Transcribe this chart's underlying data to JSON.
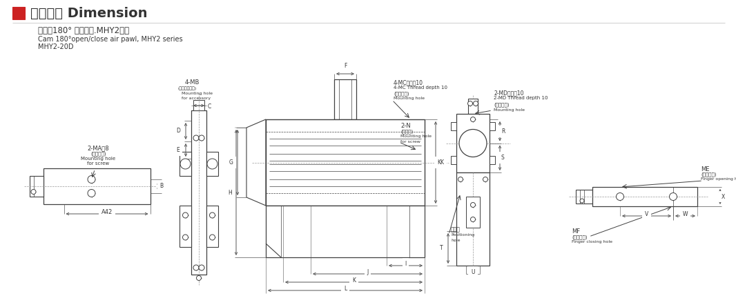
{
  "title_cn": "外型尺寸 Dimension",
  "subtitle_cn": "凸轮式180° 开闭气爪.MHY2系列",
  "subtitle_en": "Cam 180°open/close air pawl, MHY2 series",
  "model": "MHY2-20D",
  "bg_color": "#ffffff",
  "line_color": "#404040",
  "red_color": "#cc2222",
  "text_color": "#333333",
  "dim_color": "#555555"
}
